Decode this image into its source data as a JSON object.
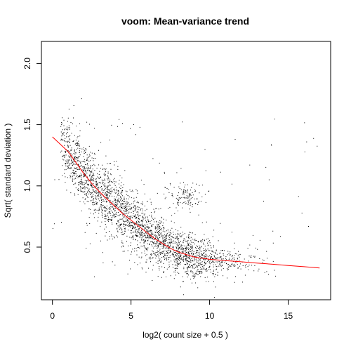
{
  "chart_data": {
    "type": "scatter",
    "title": "voom: Mean-variance trend",
    "xlabel": "log2( count size + 0.5 )",
    "ylabel": "Sqrt( standard deviation )",
    "xlim": [
      -0.7,
      17.7
    ],
    "ylim": [
      0.07,
      2.18
    ],
    "x_ticks": [
      0,
      5,
      10,
      15
    ],
    "y_ticks": [
      0.5,
      1.0,
      1.5,
      2.0
    ],
    "x_tick_labels": [
      "0",
      "5",
      "10",
      "15"
    ],
    "y_tick_labels": [
      "0.5",
      "1.0",
      "1.5",
      "2.0"
    ],
    "grid": false,
    "legend": "none",
    "colors": {
      "points": "#000000",
      "trend": "#ff0000"
    },
    "point_cloud": {
      "description_free_density_profile": [
        {
          "x": 0.5,
          "y_center": 1.37,
          "y_spread": 0.1,
          "density": 0.45
        },
        {
          "x": 1.0,
          "y_center": 1.28,
          "y_spread": 0.12,
          "density": 0.75
        },
        {
          "x": 2.0,
          "y_center": 1.1,
          "y_spread": 0.13,
          "density": 0.95
        },
        {
          "x": 3.0,
          "y_center": 0.95,
          "y_spread": 0.13,
          "density": 1.0
        },
        {
          "x": 4.0,
          "y_center": 0.83,
          "y_spread": 0.13,
          "density": 1.0
        },
        {
          "x": 5.0,
          "y_center": 0.72,
          "y_spread": 0.12,
          "density": 1.0
        },
        {
          "x": 6.0,
          "y_center": 0.62,
          "y_spread": 0.11,
          "density": 1.0
        },
        {
          "x": 7.0,
          "y_center": 0.53,
          "y_spread": 0.1,
          "density": 1.0
        },
        {
          "x": 8.0,
          "y_center": 0.46,
          "y_spread": 0.09,
          "density": 1.0
        },
        {
          "x": 9.0,
          "y_center": 0.42,
          "y_spread": 0.08,
          "density": 0.9
        },
        {
          "x": 10.0,
          "y_center": 0.4,
          "y_spread": 0.07,
          "density": 0.6
        },
        {
          "x": 11.0,
          "y_center": 0.39,
          "y_spread": 0.06,
          "density": 0.3
        },
        {
          "x": 12.0,
          "y_center": 0.38,
          "y_spread": 0.06,
          "density": 0.12
        },
        {
          "x": 13.0,
          "y_center": 0.37,
          "y_spread": 0.06,
          "density": 0.05
        },
        {
          "x": 14.0,
          "y_center": 0.36,
          "y_spread": 0.05,
          "density": 0.02
        }
      ],
      "secondary_cluster": {
        "x": 8.5,
        "y": 0.92,
        "x_spread": 0.6,
        "y_spread": 0.06
      },
      "n_points": 12000
    },
    "series": [
      {
        "type": "line",
        "x": [
          0,
          0.5,
          1,
          1.5,
          2,
          2.5,
          3,
          3.5,
          4,
          4.5,
          5,
          5.5,
          6,
          6.5,
          7,
          7.5,
          8,
          8.5,
          9,
          9.5,
          10,
          11,
          12,
          13,
          14,
          15,
          16,
          17
        ],
        "y": [
          1.4,
          1.34,
          1.28,
          1.19,
          1.1,
          1.02,
          0.95,
          0.89,
          0.83,
          0.77,
          0.72,
          0.67,
          0.62,
          0.57,
          0.53,
          0.49,
          0.46,
          0.44,
          0.42,
          0.41,
          0.4,
          0.39,
          0.38,
          0.37,
          0.36,
          0.35,
          0.34,
          0.33
        ]
      }
    ]
  }
}
